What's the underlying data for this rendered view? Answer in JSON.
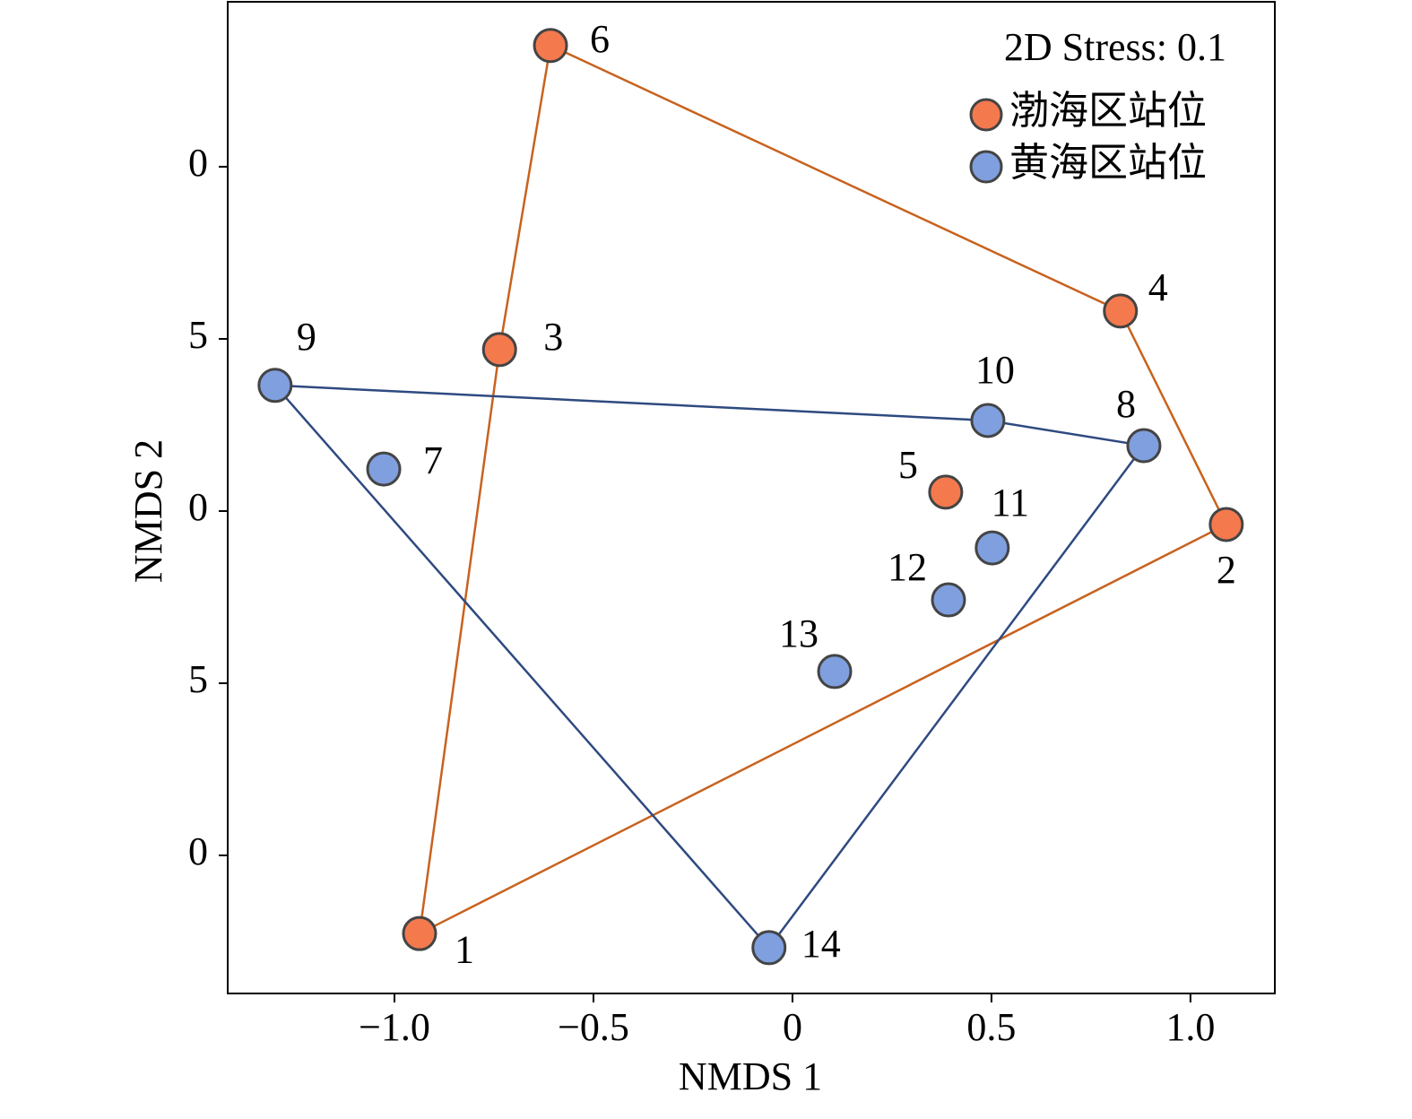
{
  "chart_data": {
    "type": "scatter",
    "annotation": "2D Stress: 0.1",
    "xlabel": "NMDS 1",
    "ylabel": "NMDS 2",
    "xlim": [
      -1.419,
      1.212
    ],
    "ylim": [
      -1.401,
      1.479
    ],
    "xticks": [
      {
        "value": -1.0,
        "label": "−1.0"
      },
      {
        "value": -0.5,
        "label": "−0.5"
      },
      0,
      {
        "value": 0.5,
        "label": "0.5"
      },
      {
        "value": 1.0,
        "label": "1.0"
      }
    ],
    "yticks": [
      {
        "value": 1.0,
        "label": "0"
      },
      {
        "value": 0.5,
        "label": "5"
      },
      0,
      {
        "value": -0.5,
        "label": "5"
      },
      {
        "value": -1.0,
        "label": "0"
      }
    ],
    "legend": "upper right",
    "hull": true,
    "series": [
      {
        "name": "渤海区站位",
        "color": "#f47a4e",
        "hull_color": "#c8621e",
        "point_labels": [
          "1",
          "2",
          "3",
          "4",
          "5",
          "6"
        ],
        "x": [
          -0.937,
          1.09,
          -0.736,
          0.824,
          0.385,
          -0.608
        ],
        "values": [
          -1.227,
          -0.039,
          0.469,
          0.581,
          0.055,
          1.352
        ]
      },
      {
        "name": "黄海区站位",
        "color": "#7f9fde",
        "hull_color": "#2e4a80",
        "point_labels": [
          "7",
          "8",
          "9",
          "10",
          "11",
          "12",
          "13",
          "14"
        ],
        "x": [
          -1.027,
          0.883,
          -1.3,
          0.491,
          0.502,
          0.392,
          0.106,
          -0.059
        ],
        "values": [
          0.122,
          0.19,
          0.365,
          0.263,
          -0.107,
          -0.258,
          -0.466,
          -1.268
        ]
      }
    ]
  }
}
